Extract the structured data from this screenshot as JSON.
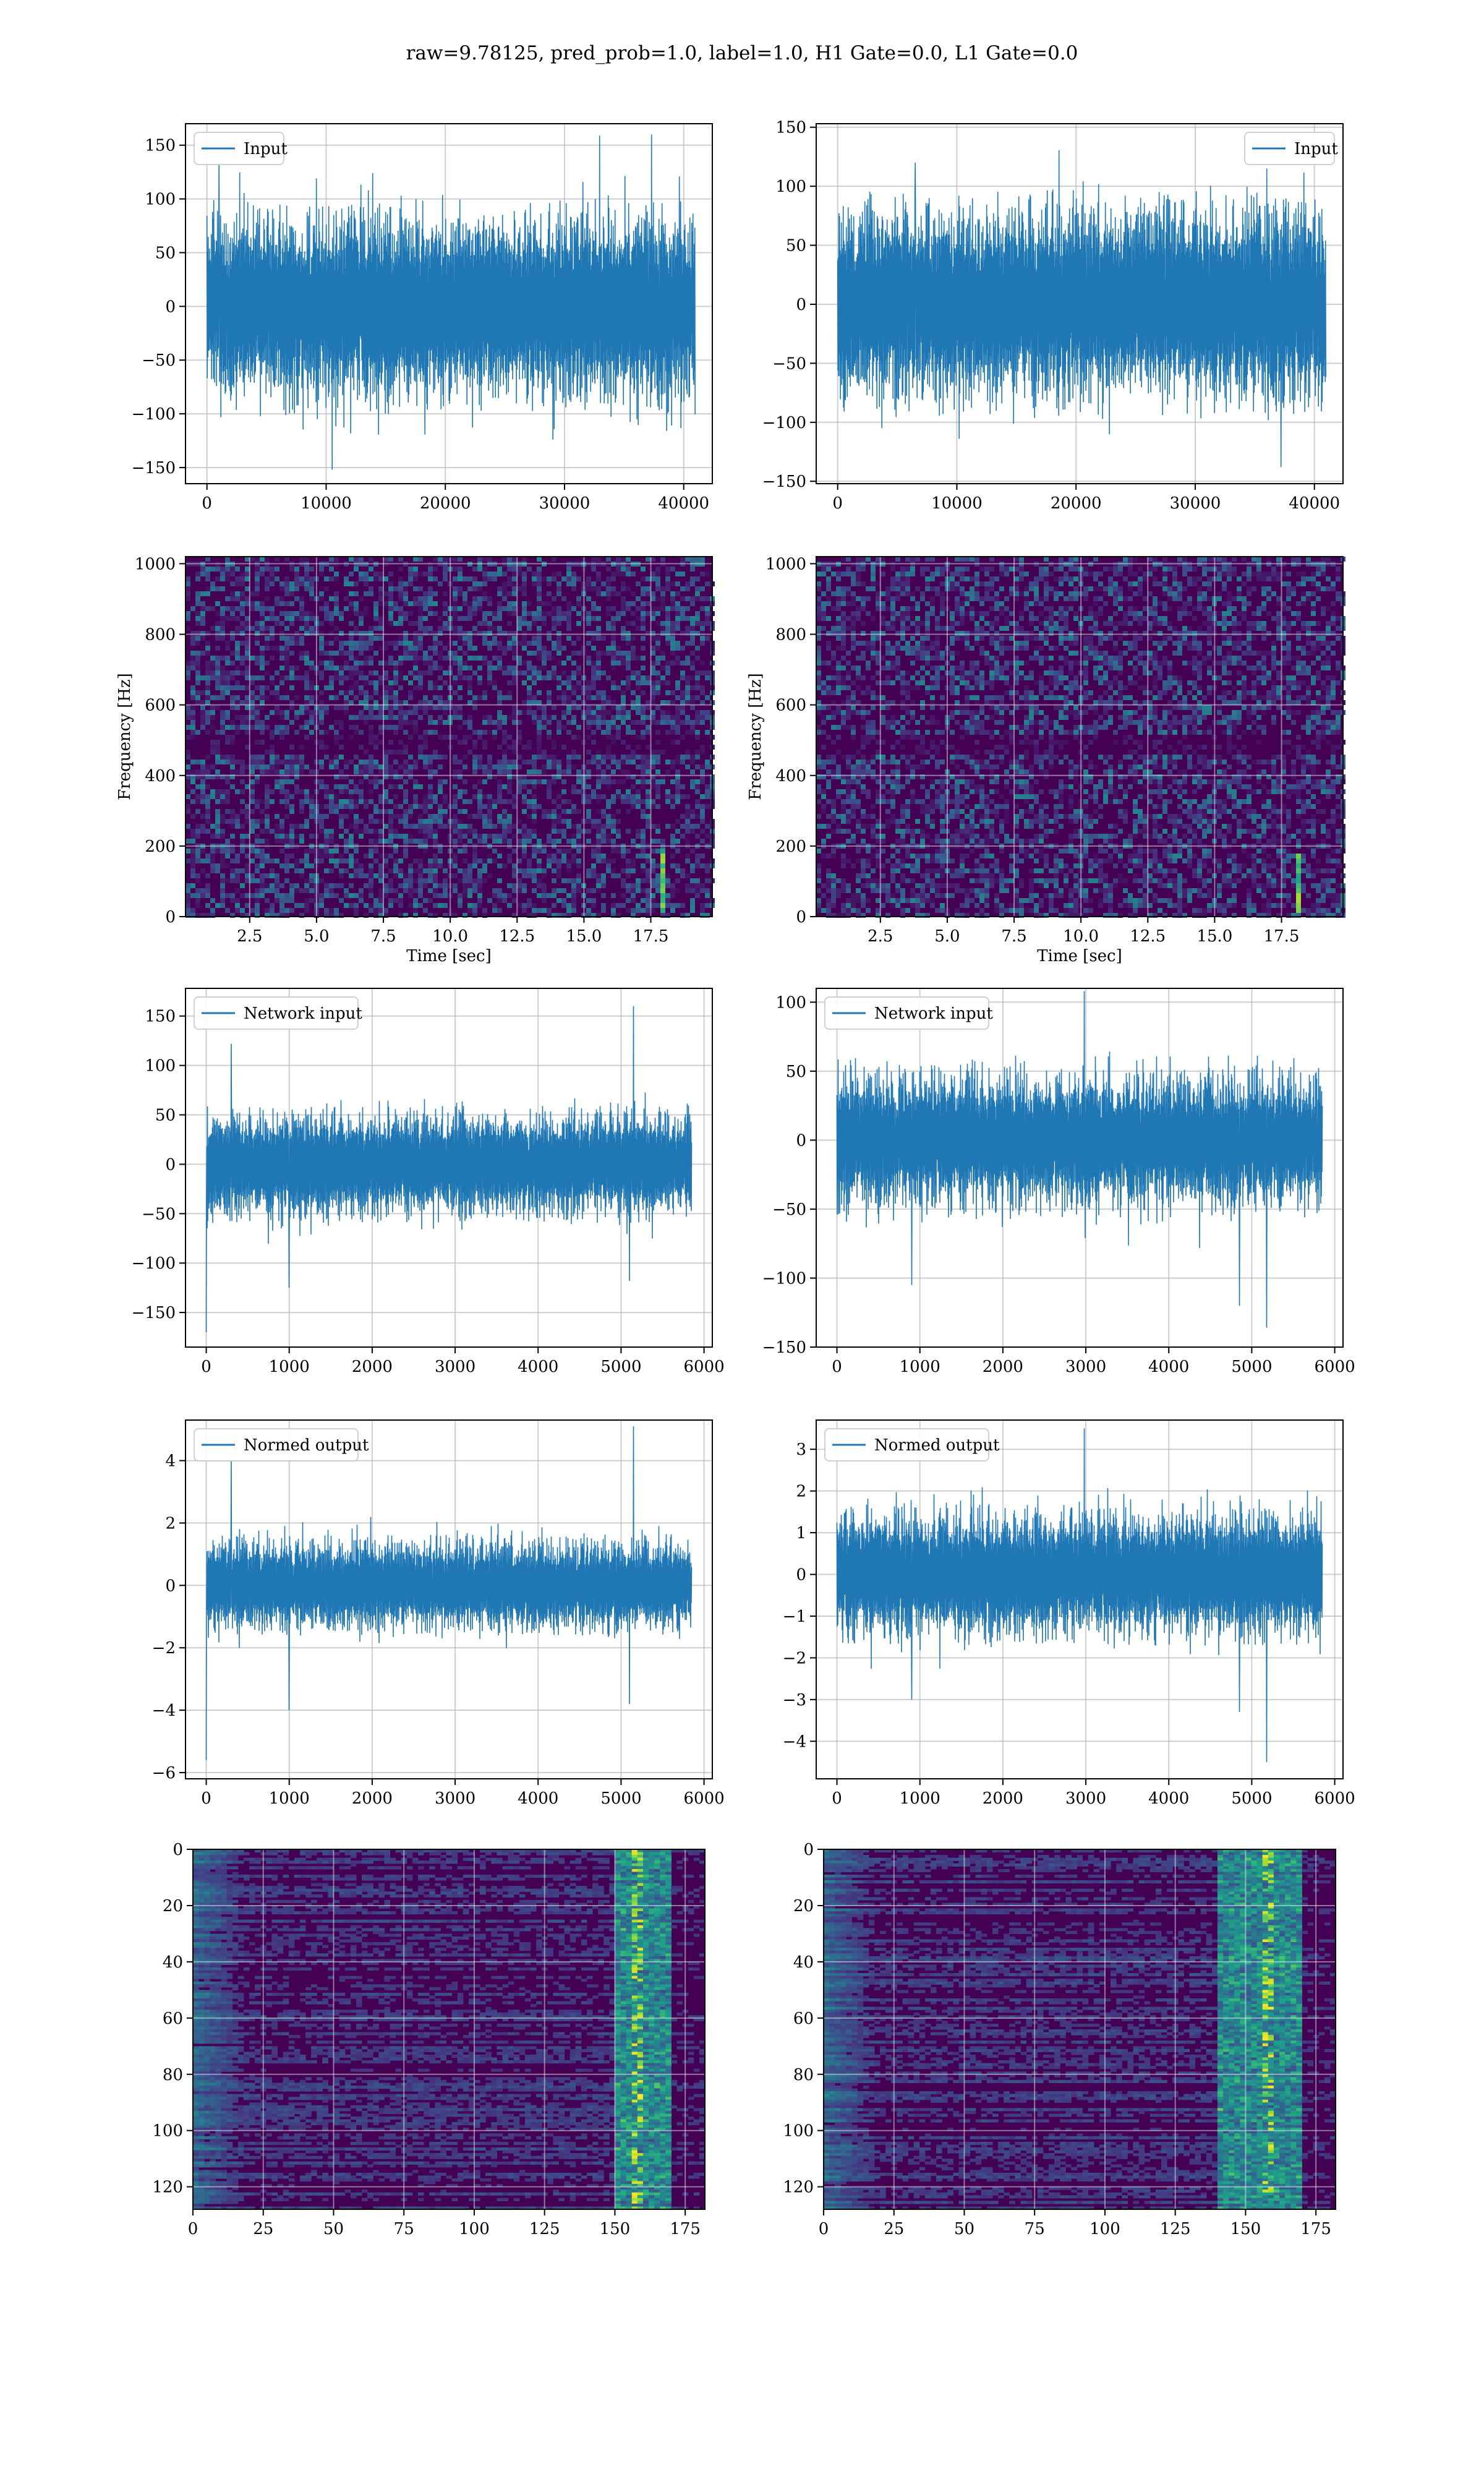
{
  "title": "raw=9.78125, pred_prob=1.0, label=1.0, H1 Gate=0.0, L1 Gate=0.0",
  "colors": {
    "line": "#1f77b4",
    "grid": "#b0b0b0",
    "viridis_dark": "#440154",
    "viridis_mid": "#21918c",
    "viridis_bright": "#5ec962",
    "viridis_yellow": "#fde725"
  },
  "chart_data": [
    {
      "id": "h1-input",
      "type": "line",
      "series": [
        {
          "name": "Input",
          "color": "#1f77b4"
        }
      ],
      "xlim": [
        -1800,
        42400
      ],
      "ylim": [
        -165,
        170
      ],
      "xticks": [
        0,
        10000,
        20000,
        30000,
        40000
      ],
      "yticks": [
        -150,
        -100,
        -50,
        0,
        50,
        100,
        150
      ],
      "legend": "upper-left",
      "grid": true,
      "summary": {
        "x_range": [
          0,
          40959
        ],
        "band": 58,
        "spikes": [
          [
            1000,
            132
          ],
          [
            10500,
            -152
          ],
          [
            37300,
            160
          ]
        ]
      }
    },
    {
      "id": "l1-input",
      "type": "line",
      "series": [
        {
          "name": "Input",
          "color": "#1f77b4"
        }
      ],
      "xlim": [
        -1800,
        42400
      ],
      "ylim": [
        -152,
        153
      ],
      "xticks": [
        0,
        10000,
        20000,
        30000,
        40000
      ],
      "yticks": [
        -150,
        -100,
        -50,
        0,
        50,
        100,
        150
      ],
      "legend": "upper-right",
      "grid": true,
      "summary": {
        "x_range": [
          0,
          40959
        ],
        "band": 55,
        "spikes": [
          [
            6500,
            120
          ],
          [
            37200,
            -138
          ],
          [
            36000,
            115
          ]
        ]
      }
    },
    {
      "id": "h1-spectrogram",
      "type": "heatmap",
      "xlabel": "Time [sec]",
      "ylabel": "Frequency [Hz]",
      "xlim": [
        0.1,
        19.8
      ],
      "ylim": [
        0,
        1020
      ],
      "xticks": [
        2.5,
        5.0,
        7.5,
        10.0,
        12.5,
        15.0,
        17.5
      ],
      "yticks": [
        0,
        200,
        400,
        600,
        800,
        1000
      ],
      "colormap": "viridis",
      "grid": true,
      "features": {
        "quiet_band_hz": [
          470,
          520
        ],
        "chirp_time_sec": 17.9,
        "chirp_freq_hz": [
          20,
          200
        ]
      }
    },
    {
      "id": "l1-spectrogram",
      "type": "heatmap",
      "xlabel": "Time [sec]",
      "ylabel": "Frequency [Hz]",
      "xlim": [
        0.1,
        19.8
      ],
      "ylim": [
        0,
        1020
      ],
      "xticks": [
        2.5,
        5.0,
        7.5,
        10.0,
        12.5,
        15.0,
        17.5
      ],
      "yticks": [
        0,
        200,
        400,
        600,
        800,
        1000
      ],
      "colormap": "viridis",
      "grid": true,
      "features": {
        "quiet_band_hz": [
          470,
          520
        ],
        "chirp_time_sec": 18.0,
        "chirp_freq_hz": [
          20,
          180
        ]
      }
    },
    {
      "id": "h1-network-input",
      "type": "line",
      "series": [
        {
          "name": "Network input",
          "color": "#1f77b4"
        }
      ],
      "xlim": [
        -250,
        6100
      ],
      "ylim": [
        -185,
        178
      ],
      "xticks": [
        0,
        1000,
        2000,
        3000,
        4000,
        5000,
        6000
      ],
      "yticks": [
        -150,
        -100,
        -50,
        0,
        50,
        100,
        150
      ],
      "legend": "upper-left",
      "grid": true,
      "summary": {
        "x_range": [
          0,
          5850
        ],
        "band": 35,
        "spikes": [
          [
            0,
            -170
          ],
          [
            1000,
            -125
          ],
          [
            300,
            122
          ],
          [
            5150,
            160
          ],
          [
            5100,
            -118
          ]
        ]
      }
    },
    {
      "id": "l1-network-input",
      "type": "line",
      "series": [
        {
          "name": "Network input",
          "color": "#1f77b4"
        }
      ],
      "xlim": [
        -250,
        6100
      ],
      "ylim": [
        -150,
        110
      ],
      "xticks": [
        0,
        1000,
        2000,
        3000,
        4000,
        5000,
        6000
      ],
      "yticks": [
        -150,
        -100,
        -50,
        0,
        50,
        100
      ],
      "legend": "upper-left",
      "grid": true,
      "summary": {
        "x_range": [
          0,
          5850
        ],
        "band": 32,
        "spikes": [
          [
            2980,
            108
          ],
          [
            5180,
            -136
          ],
          [
            4850,
            -120
          ],
          [
            900,
            -105
          ]
        ]
      }
    },
    {
      "id": "h1-normed-output",
      "type": "line",
      "series": [
        {
          "name": "Normed output",
          "color": "#1f77b4"
        }
      ],
      "xlim": [
        -250,
        6100
      ],
      "ylim": [
        -6.2,
        5.3
      ],
      "xticks": [
        0,
        1000,
        2000,
        3000,
        4000,
        5000,
        6000
      ],
      "yticks": [
        -6,
        -4,
        -2,
        0,
        2,
        4
      ],
      "legend": "upper-left",
      "grid": true,
      "summary": {
        "x_range": [
          0,
          5850
        ],
        "band": 0.95,
        "spikes": [
          [
            0,
            -5.6
          ],
          [
            1000,
            -4.0
          ],
          [
            300,
            4.0
          ],
          [
            5150,
            5.1
          ],
          [
            5100,
            -3.8
          ]
        ]
      }
    },
    {
      "id": "l1-normed-output",
      "type": "line",
      "series": [
        {
          "name": "Normed output",
          "color": "#1f77b4"
        }
      ],
      "xlim": [
        -250,
        6100
      ],
      "ylim": [
        -4.9,
        3.7
      ],
      "xticks": [
        0,
        1000,
        2000,
        3000,
        4000,
        5000,
        6000
      ],
      "yticks": [
        -4,
        -3,
        -2,
        -1,
        0,
        1,
        2,
        3
      ],
      "legend": "upper-left",
      "grid": true,
      "summary": {
        "x_range": [
          0,
          5850
        ],
        "band": 1.0,
        "spikes": [
          [
            2980,
            3.5
          ],
          [
            5180,
            -4.5
          ],
          [
            4850,
            -3.3
          ],
          [
            900,
            -3.0
          ]
        ]
      }
    },
    {
      "id": "h1-feature-map",
      "type": "heatmap",
      "xlim": [
        0,
        182
      ],
      "ylim": [
        128,
        0
      ],
      "xticks": [
        0,
        25,
        50,
        75,
        100,
        125,
        150,
        175
      ],
      "yticks": [
        0,
        20,
        40,
        60,
        80,
        100,
        120
      ],
      "colormap": "viridis",
      "grid": true,
      "features": {
        "activation_cols": [
          150,
          170
        ],
        "hotspot_col": 158
      }
    },
    {
      "id": "l1-feature-map",
      "type": "heatmap",
      "xlim": [
        0,
        182
      ],
      "ylim": [
        128,
        0
      ],
      "xticks": [
        0,
        25,
        50,
        75,
        100,
        125,
        150,
        175
      ],
      "yticks": [
        0,
        20,
        40,
        60,
        80,
        100,
        120
      ],
      "colormap": "viridis",
      "grid": true,
      "features": {
        "activation_cols": [
          140,
          170
        ],
        "hotspot_col": 158
      }
    }
  ]
}
